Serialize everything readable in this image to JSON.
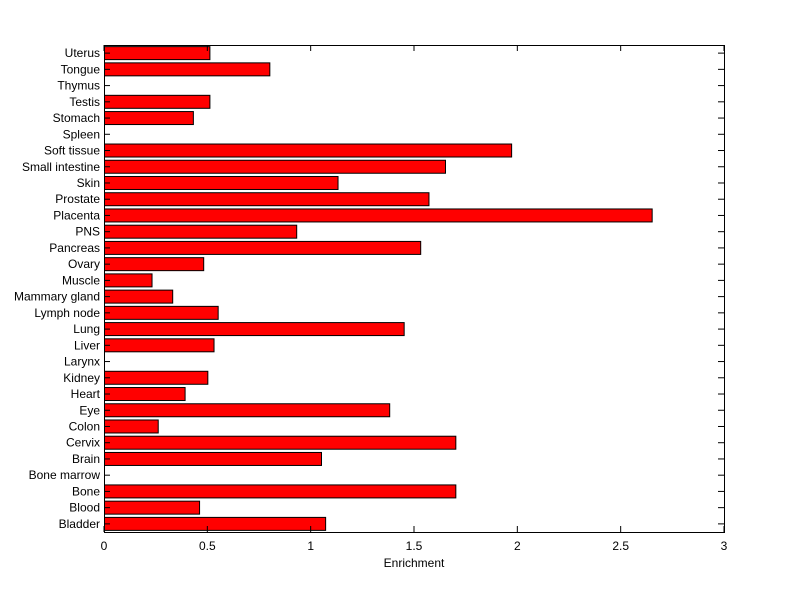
{
  "colors": {
    "bar_fill": "#ff0000",
    "bar_stroke": "#000000",
    "axis": "#000000",
    "background": "#ffffff"
  },
  "chart_data": {
    "type": "bar",
    "orientation": "horizontal",
    "title": "",
    "xlabel": "Enrichment",
    "ylabel": "",
    "xlim": [
      0,
      3
    ],
    "xticks": [
      0,
      0.5,
      1,
      1.5,
      2,
      2.5,
      3
    ],
    "xtick_labels": [
      "0",
      "0.5",
      "1",
      "1.5",
      "2",
      "2.5",
      "3"
    ],
    "grid": false,
    "categories": [
      "Bladder",
      "Blood",
      "Bone",
      "Bone marrow",
      "Brain",
      "Cervix",
      "Colon",
      "Eye",
      "Heart",
      "Kidney",
      "Larynx",
      "Liver",
      "Lung",
      "Lymph node",
      "Mammary gland",
      "Muscle",
      "Ovary",
      "Pancreas",
      "PNS",
      "Placenta",
      "Prostate",
      "Skin",
      "Small intestine",
      "Soft tissue",
      "Spleen",
      "Stomach",
      "Testis",
      "Thymus",
      "Tongue",
      "Uterus"
    ],
    "values": [
      1.07,
      0.46,
      1.7,
      0.0,
      1.05,
      1.7,
      0.26,
      1.38,
      0.39,
      0.5,
      0.0,
      0.53,
      1.45,
      0.55,
      0.33,
      0.23,
      0.48,
      1.53,
      0.93,
      2.65,
      1.57,
      1.13,
      1.65,
      1.97,
      0.0,
      0.43,
      0.51,
      0.0,
      0.8,
      0.51
    ]
  }
}
